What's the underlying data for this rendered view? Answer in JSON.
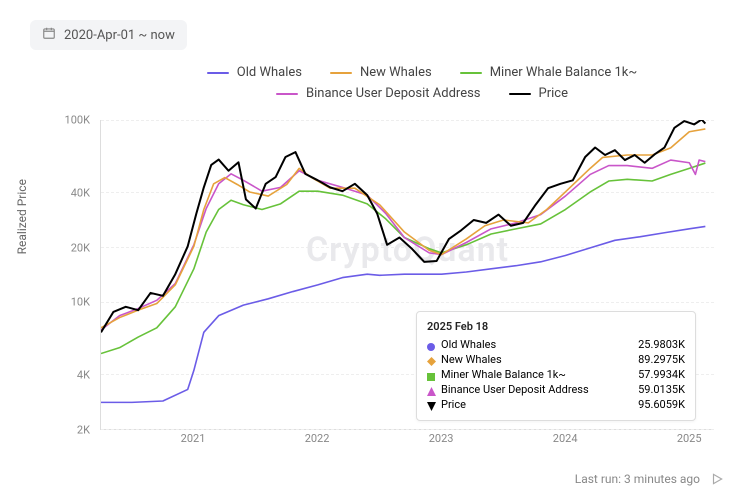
{
  "date_range": {
    "label": "2020-Apr-01 ~ now"
  },
  "y_axis": {
    "label": "Realized Price"
  },
  "footer": {
    "last_run": "Last run: 3 minutes ago"
  },
  "watermark": "CryptoQuant",
  "colors": {
    "old_whales": "#6b5ce7",
    "new_whales": "#e6a23c",
    "miner": "#67c23a",
    "binance": "#c956c9",
    "price": "#000000",
    "grid": "#eeeeee",
    "axis": "#dddddd",
    "bg": "#ffffff",
    "pill_bg": "#f3f4f6"
  },
  "legend": [
    {
      "label": "Old Whales",
      "color": "#6b5ce7"
    },
    {
      "label": "New Whales",
      "color": "#e6a23c"
    },
    {
      "label": "Miner Whale Balance 1k~",
      "color": "#67c23a"
    },
    {
      "label": "Binance User Deposit Address",
      "color": "#c956c9"
    },
    {
      "label": "Price",
      "color": "#000000"
    }
  ],
  "chart": {
    "type": "line",
    "scale": "log",
    "ylim": [
      2000,
      100000
    ],
    "y_ticks": [
      {
        "v": 2000,
        "label": "2K"
      },
      {
        "v": 4000,
        "label": "4K"
      },
      {
        "v": 10000,
        "label": "10K"
      },
      {
        "v": 20000,
        "label": "20K"
      },
      {
        "v": 40000,
        "label": "40K"
      },
      {
        "v": 100000,
        "label": "100K"
      }
    ],
    "xlim": [
      2020.25,
      2025.2
    ],
    "x_ticks": [
      {
        "v": 2021,
        "label": "2021"
      },
      {
        "v": 2022,
        "label": "2022"
      },
      {
        "v": 2023,
        "label": "2023"
      },
      {
        "v": 2024,
        "label": "2024"
      },
      {
        "v": 2025,
        "label": "2025"
      }
    ],
    "line_width": 1.6,
    "price_line_width": 2.0,
    "series": {
      "old_whales": {
        "color": "#6b5ce7",
        "data": [
          [
            2020.25,
            2800
          ],
          [
            2020.5,
            2800
          ],
          [
            2020.75,
            2850
          ],
          [
            2020.95,
            3300
          ],
          [
            2021.0,
            4200
          ],
          [
            2021.08,
            6800
          ],
          [
            2021.2,
            8400
          ],
          [
            2021.4,
            9600
          ],
          [
            2021.6,
            10400
          ],
          [
            2021.8,
            11400
          ],
          [
            2022.0,
            12400
          ],
          [
            2022.2,
            13600
          ],
          [
            2022.4,
            14200
          ],
          [
            2022.5,
            14000
          ],
          [
            2022.7,
            14200
          ],
          [
            2022.9,
            14200
          ],
          [
            2023.0,
            14200
          ],
          [
            2023.2,
            14600
          ],
          [
            2023.4,
            15200
          ],
          [
            2023.6,
            15800
          ],
          [
            2023.8,
            16600
          ],
          [
            2024.0,
            18000
          ],
          [
            2024.2,
            19800
          ],
          [
            2024.4,
            21800
          ],
          [
            2024.6,
            22800
          ],
          [
            2024.8,
            24000
          ],
          [
            2025.0,
            25200
          ],
          [
            2025.13,
            25980
          ]
        ]
      },
      "new_whales": {
        "color": "#e6a23c",
        "data": [
          [
            2020.25,
            7200
          ],
          [
            2020.4,
            8200
          ],
          [
            2020.55,
            9000
          ],
          [
            2020.7,
            9800
          ],
          [
            2020.85,
            12400
          ],
          [
            2021.0,
            20200
          ],
          [
            2021.08,
            32200
          ],
          [
            2021.16,
            44600
          ],
          [
            2021.25,
            48200
          ],
          [
            2021.35,
            44200
          ],
          [
            2021.45,
            40200
          ],
          [
            2021.6,
            38200
          ],
          [
            2021.75,
            44200
          ],
          [
            2021.85,
            54200
          ],
          [
            2021.95,
            48200
          ],
          [
            2022.1,
            42200
          ],
          [
            2022.3,
            42200
          ],
          [
            2022.5,
            34200
          ],
          [
            2022.7,
            24200
          ],
          [
            2022.9,
            19200
          ],
          [
            2023.0,
            18200
          ],
          [
            2023.2,
            22200
          ],
          [
            2023.35,
            26200
          ],
          [
            2023.5,
            28200
          ],
          [
            2023.7,
            27200
          ],
          [
            2023.85,
            32200
          ],
          [
            2024.0,
            40200
          ],
          [
            2024.2,
            54200
          ],
          [
            2024.3,
            62200
          ],
          [
            2024.5,
            64200
          ],
          [
            2024.7,
            64200
          ],
          [
            2024.85,
            70200
          ],
          [
            2025.0,
            86200
          ],
          [
            2025.13,
            89298
          ]
        ]
      },
      "miner": {
        "color": "#67c23a",
        "data": [
          [
            2020.25,
            5200
          ],
          [
            2020.4,
            5600
          ],
          [
            2020.55,
            6400
          ],
          [
            2020.7,
            7200
          ],
          [
            2020.85,
            9400
          ],
          [
            2021.0,
            15200
          ],
          [
            2021.1,
            24200
          ],
          [
            2021.2,
            32200
          ],
          [
            2021.3,
            36200
          ],
          [
            2021.4,
            34200
          ],
          [
            2021.55,
            32200
          ],
          [
            2021.7,
            34600
          ],
          [
            2021.85,
            40600
          ],
          [
            2022.0,
            40600
          ],
          [
            2022.2,
            38600
          ],
          [
            2022.4,
            34600
          ],
          [
            2022.55,
            28600
          ],
          [
            2022.7,
            22600
          ],
          [
            2022.9,
            19600
          ],
          [
            2023.0,
            18600
          ],
          [
            2023.2,
            20600
          ],
          [
            2023.4,
            23600
          ],
          [
            2023.6,
            25200
          ],
          [
            2023.8,
            26800
          ],
          [
            2024.0,
            32200
          ],
          [
            2024.2,
            40200
          ],
          [
            2024.35,
            46200
          ],
          [
            2024.5,
            47200
          ],
          [
            2024.7,
            46200
          ],
          [
            2024.85,
            50200
          ],
          [
            2025.0,
            54200
          ],
          [
            2025.13,
            57993
          ]
        ]
      },
      "binance": {
        "color": "#c956c9",
        "data": [
          [
            2020.25,
            7000
          ],
          [
            2020.4,
            8400
          ],
          [
            2020.55,
            9200
          ],
          [
            2020.7,
            10200
          ],
          [
            2020.85,
            12600
          ],
          [
            2021.0,
            20600
          ],
          [
            2021.1,
            32600
          ],
          [
            2021.2,
            44600
          ],
          [
            2021.3,
            50600
          ],
          [
            2021.4,
            46600
          ],
          [
            2021.55,
            40600
          ],
          [
            2021.7,
            42600
          ],
          [
            2021.85,
            52600
          ],
          [
            2022.0,
            46600
          ],
          [
            2022.2,
            42600
          ],
          [
            2022.4,
            38600
          ],
          [
            2022.55,
            30600
          ],
          [
            2022.7,
            22600
          ],
          [
            2022.9,
            18600
          ],
          [
            2023.0,
            18200
          ],
          [
            2023.2,
            21200
          ],
          [
            2023.4,
            25200
          ],
          [
            2023.6,
            27200
          ],
          [
            2023.8,
            30200
          ],
          [
            2024.0,
            38200
          ],
          [
            2024.2,
            50200
          ],
          [
            2024.35,
            56200
          ],
          [
            2024.5,
            56200
          ],
          [
            2024.7,
            54200
          ],
          [
            2024.85,
            60200
          ],
          [
            2025.0,
            58200
          ],
          [
            2025.05,
            50200
          ],
          [
            2025.08,
            60200
          ],
          [
            2025.13,
            59014
          ]
        ]
      },
      "price": {
        "color": "#000000",
        "data": [
          [
            2020.25,
            6800
          ],
          [
            2020.35,
            8800
          ],
          [
            2020.45,
            9400
          ],
          [
            2020.55,
            9000
          ],
          [
            2020.65,
            11200
          ],
          [
            2020.75,
            10800
          ],
          [
            2020.85,
            14200
          ],
          [
            2020.95,
            20200
          ],
          [
            2021.02,
            30600
          ],
          [
            2021.08,
            42600
          ],
          [
            2021.14,
            56600
          ],
          [
            2021.2,
            60600
          ],
          [
            2021.28,
            52600
          ],
          [
            2021.36,
            58600
          ],
          [
            2021.42,
            36600
          ],
          [
            2021.5,
            32600
          ],
          [
            2021.58,
            44600
          ],
          [
            2021.66,
            48600
          ],
          [
            2021.74,
            62600
          ],
          [
            2021.82,
            66600
          ],
          [
            2021.9,
            50600
          ],
          [
            2022.0,
            46600
          ],
          [
            2022.1,
            42600
          ],
          [
            2022.2,
            40600
          ],
          [
            2022.3,
            44600
          ],
          [
            2022.4,
            38600
          ],
          [
            2022.48,
            30600
          ],
          [
            2022.56,
            20600
          ],
          [
            2022.66,
            22600
          ],
          [
            2022.76,
            19600
          ],
          [
            2022.86,
            16600
          ],
          [
            2022.96,
            16800
          ],
          [
            2023.06,
            22200
          ],
          [
            2023.16,
            24800
          ],
          [
            2023.26,
            28200
          ],
          [
            2023.36,
            27200
          ],
          [
            2023.46,
            30200
          ],
          [
            2023.56,
            26200
          ],
          [
            2023.66,
            27200
          ],
          [
            2023.76,
            34200
          ],
          [
            2023.86,
            42200
          ],
          [
            2023.96,
            44600
          ],
          [
            2024.06,
            46600
          ],
          [
            2024.16,
            62600
          ],
          [
            2024.24,
            70600
          ],
          [
            2024.32,
            64200
          ],
          [
            2024.4,
            68200
          ],
          [
            2024.48,
            60200
          ],
          [
            2024.56,
            64200
          ],
          [
            2024.64,
            58200
          ],
          [
            2024.72,
            64600
          ],
          [
            2024.8,
            70600
          ],
          [
            2024.88,
            90600
          ],
          [
            2024.96,
            98600
          ],
          [
            2025.04,
            94600
          ],
          [
            2025.1,
            100600
          ],
          [
            2025.13,
            95606
          ]
        ]
      }
    }
  },
  "tooltip": {
    "title": "2025 Feb 18",
    "rows": [
      {
        "label": "Old Whales",
        "value": "25.9803K",
        "color": "#6b5ce7",
        "shape": "circle"
      },
      {
        "label": "New Whales",
        "value": "89.2975K",
        "color": "#e6a23c",
        "shape": "diamond"
      },
      {
        "label": "Miner Whale Balance 1k~",
        "value": "57.9934K",
        "color": "#67c23a",
        "shape": "square"
      },
      {
        "label": "Binance User Deposit Address",
        "value": "59.0135K",
        "color": "#c956c9",
        "shape": "triangle"
      },
      {
        "label": "Price",
        "value": "95.6059K",
        "color": "#000000",
        "shape": "triangle-down"
      }
    ]
  }
}
